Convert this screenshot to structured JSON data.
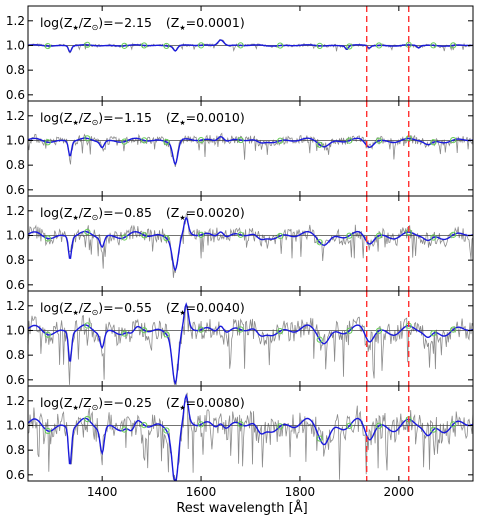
{
  "chart_data": {
    "type": "line",
    "xlabel": "Rest wavelength [Å]",
    "xlim": [
      1250,
      2150
    ],
    "x_ticks": [
      "1400",
      "1600",
      "1800",
      "2000"
    ],
    "y_ticks": [
      "0.6",
      "0.8",
      "1.0",
      "1.2"
    ],
    "ylim": [
      0.55,
      1.32
    ],
    "reference_line": 1.0,
    "vertical_markers": [
      1935,
      2020
    ],
    "colors": {
      "model": "#1a1adb",
      "spectrum": "#8c8c8c",
      "markers": "#66cc55",
      "vlines": "#ff3030",
      "ref": "#444444"
    },
    "marker_x": [
      1290,
      1370,
      1445,
      1485,
      1530,
      1600,
      1680,
      1760,
      1840,
      1900,
      1960,
      2020,
      2070,
      2110
    ],
    "panels": [
      {
        "label_log": "log(Z",
        "log_value": ")=−2.15",
        "label_z": "(Z",
        "z_value": "=0.0001)",
        "features": [
          [
            1335,
            -0.05,
            3
          ],
          [
            1548,
            -0.04,
            4
          ],
          [
            1640,
            0.05,
            6
          ],
          [
            1895,
            -0.03,
            3
          ],
          [
            1940,
            -0.02,
            3
          ],
          [
            2040,
            -0.02,
            3
          ]
        ]
      },
      {
        "label_log": "log(Z",
        "log_value": ")=−1.15",
        "label_z": "(Z",
        "z_value": "=0.0010)",
        "features": [
          [
            1335,
            -0.12,
            3
          ],
          [
            1400,
            -0.05,
            4
          ],
          [
            1548,
            -0.18,
            5
          ],
          [
            1640,
            0.05,
            6
          ],
          [
            1720,
            -0.03,
            8
          ],
          [
            1850,
            -0.04,
            10
          ],
          [
            1940,
            -0.05,
            8
          ],
          [
            2060,
            -0.04,
            8
          ]
        ]
      },
      {
        "label_log": "log(Z",
        "log_value": ")=−0.85",
        "label_z": "(Z",
        "z_value": "=0.0020)",
        "features": [
          [
            1335,
            -0.18,
            3
          ],
          [
            1400,
            -0.08,
            4
          ],
          [
            1548,
            -0.26,
            6
          ],
          [
            1570,
            0.12,
            4
          ],
          [
            1640,
            0.06,
            6
          ],
          [
            1720,
            -0.05,
            8
          ],
          [
            1850,
            -0.06,
            10
          ],
          [
            1940,
            -0.06,
            8
          ],
          [
            2060,
            -0.05,
            8
          ]
        ]
      },
      {
        "label_log": "log(Z",
        "log_value": ")=−0.55",
        "label_z": "(Z",
        "z_value": "=0.0040)",
        "features": [
          [
            1335,
            -0.24,
            3
          ],
          [
            1400,
            -0.12,
            4
          ],
          [
            1460,
            -0.05,
            6
          ],
          [
            1548,
            -0.4,
            6
          ],
          [
            1570,
            0.18,
            4
          ],
          [
            1640,
            0.08,
            6
          ],
          [
            1720,
            -0.07,
            8
          ],
          [
            1850,
            -0.08,
            10
          ],
          [
            1940,
            -0.08,
            8
          ],
          [
            2060,
            -0.07,
            8
          ]
        ]
      },
      {
        "label_log": "log(Z",
        "log_value": ")=−0.25",
        "label_z": "(Z",
        "z_value": "=0.0080)",
        "features": [
          [
            1335,
            -0.3,
            3
          ],
          [
            1400,
            -0.2,
            4
          ],
          [
            1460,
            -0.08,
            6
          ],
          [
            1548,
            -0.45,
            6
          ],
          [
            1570,
            0.2,
            4
          ],
          [
            1640,
            0.07,
            6
          ],
          [
            1720,
            -0.1,
            8
          ],
          [
            1850,
            -0.12,
            10
          ],
          [
            1940,
            -0.1,
            8
          ],
          [
            2060,
            -0.1,
            8
          ]
        ]
      }
    ]
  }
}
